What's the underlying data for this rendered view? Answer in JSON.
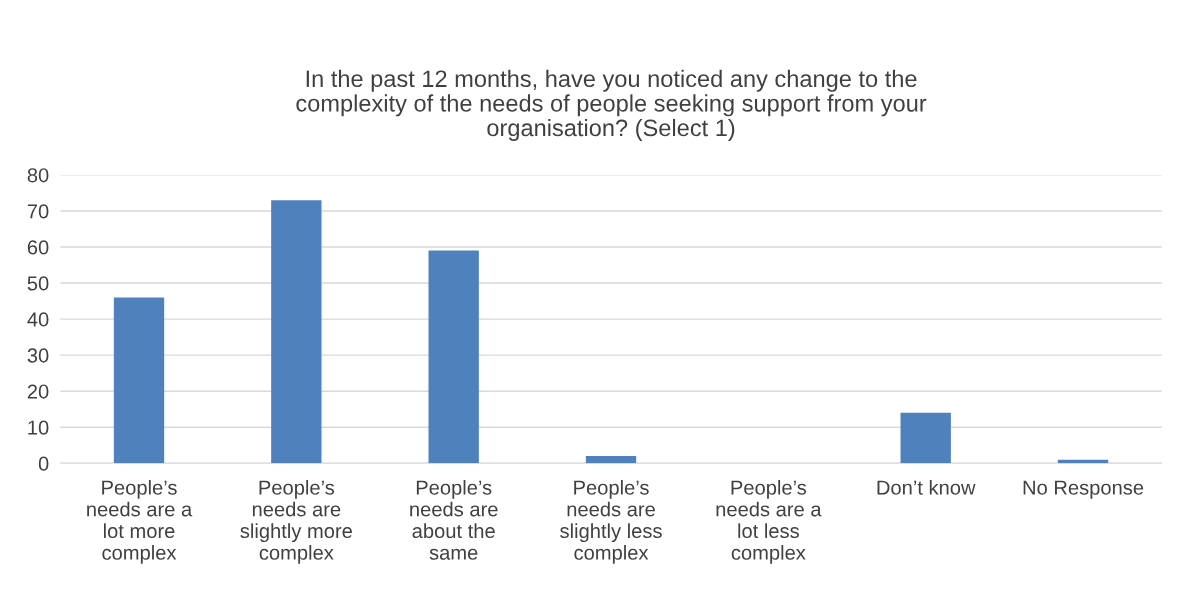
{
  "chart_data": {
    "type": "bar",
    "title": "In the past 12 months, have you noticed any change to the\ncomplexity of the needs of people seeking support from your\norganisation? (Select 1)",
    "categories": [
      "People’s\nneeds are a\nlot more\ncomplex",
      "People’s\nneeds are\nslightly more\ncomplex",
      "People’s\nneeds are\nabout the\nsame",
      "People’s\nneeds are\nslightly less\ncomplex",
      "People’s\nneeds are a\nlot less\ncomplex",
      "Don’t know",
      "No Response"
    ],
    "values": [
      46,
      73,
      59,
      2,
      0,
      14,
      1
    ],
    "color": "#4f81bd",
    "ylim": [
      0,
      80
    ],
    "yticks": [
      0,
      10,
      20,
      30,
      40,
      50,
      60,
      70,
      80
    ],
    "grid": "y"
  }
}
